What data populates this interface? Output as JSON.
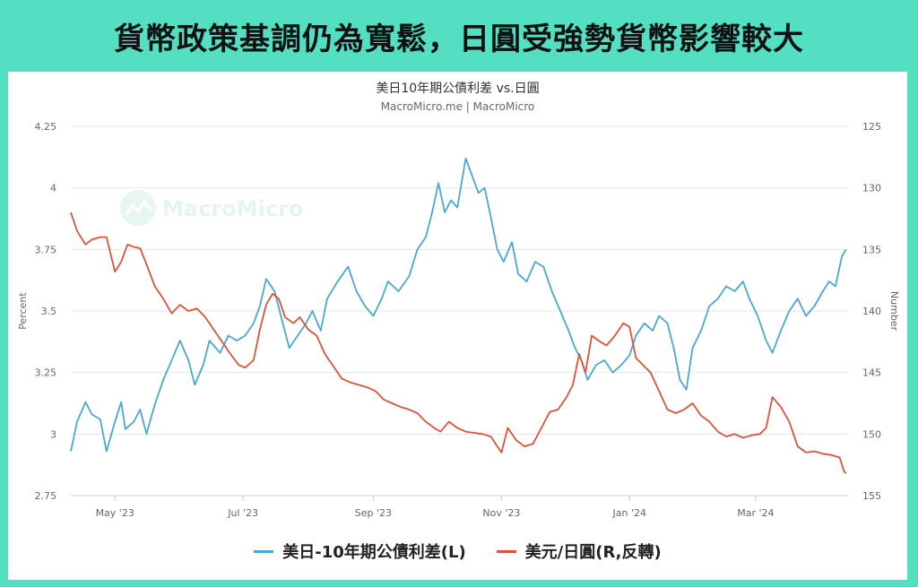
{
  "headline": "貨幣政策基調仍為寬鬆，日圓受強勢貨幣影響較大",
  "watermark": "MacroMicro",
  "colors": {
    "spread": "#4aa8d0",
    "jpy": "#d9553a",
    "frame": "#53e0c2",
    "grid": "#e6e6e6",
    "axis_text": "#666666"
  },
  "chart_data": {
    "type": "line",
    "title": "美日10年期公債利差 vs.日圓",
    "subtitle": "MacroMicro.me | MacroMicro",
    "xlabel": "",
    "x_range": [
      "2023-04-10",
      "2024-04-14"
    ],
    "x_ticks": [
      {
        "date": "2023-05-01",
        "label": "May '23"
      },
      {
        "date": "2023-07-01",
        "label": "Jul '23"
      },
      {
        "date": "2023-09-01",
        "label": "Sep '23"
      },
      {
        "date": "2023-11-01",
        "label": "Nov '23"
      },
      {
        "date": "2024-01-01",
        "label": "Jan '24"
      },
      {
        "date": "2024-03-01",
        "label": "Mar '24"
      }
    ],
    "y_left": {
      "label": "Percent",
      "min": 2.75,
      "max": 4.25,
      "ticks": [
        2.75,
        3,
        3.25,
        3.5,
        3.75,
        4,
        4.25
      ]
    },
    "y_right": {
      "label": "Number",
      "min": 125,
      "max": 155,
      "reversed": true,
      "ticks": [
        125,
        130,
        135,
        140,
        145,
        150,
        155
      ]
    },
    "grid": true,
    "legend_position": "bottom",
    "series": [
      {
        "name": "美日-10年期公債利差(L)",
        "axis": "left",
        "points": [
          [
            "2023-04-10",
            2.93
          ],
          [
            "2023-04-13",
            3.05
          ],
          [
            "2023-04-17",
            3.13
          ],
          [
            "2023-04-20",
            3.08
          ],
          [
            "2023-04-24",
            3.06
          ],
          [
            "2023-04-27",
            2.93
          ],
          [
            "2023-05-01",
            3.05
          ],
          [
            "2023-05-04",
            3.13
          ],
          [
            "2023-05-06",
            3.02
          ],
          [
            "2023-05-10",
            3.05
          ],
          [
            "2023-05-13",
            3.1
          ],
          [
            "2023-05-16",
            3.0
          ],
          [
            "2023-05-20",
            3.12
          ],
          [
            "2023-05-24",
            3.22
          ],
          [
            "2023-05-28",
            3.3
          ],
          [
            "2023-06-01",
            3.38
          ],
          [
            "2023-06-05",
            3.3
          ],
          [
            "2023-06-08",
            3.2
          ],
          [
            "2023-06-12",
            3.28
          ],
          [
            "2023-06-15",
            3.38
          ],
          [
            "2023-06-20",
            3.33
          ],
          [
            "2023-06-24",
            3.4
          ],
          [
            "2023-06-28",
            3.38
          ],
          [
            "2023-07-02",
            3.4
          ],
          [
            "2023-07-06",
            3.45
          ],
          [
            "2023-07-09",
            3.52
          ],
          [
            "2023-07-12",
            3.63
          ],
          [
            "2023-07-16",
            3.58
          ],
          [
            "2023-07-19",
            3.48
          ],
          [
            "2023-07-23",
            3.35
          ],
          [
            "2023-07-27",
            3.4
          ],
          [
            "2023-07-31",
            3.45
          ],
          [
            "2023-08-03",
            3.5
          ],
          [
            "2023-08-07",
            3.42
          ],
          [
            "2023-08-10",
            3.55
          ],
          [
            "2023-08-15",
            3.62
          ],
          [
            "2023-08-20",
            3.68
          ],
          [
            "2023-08-24",
            3.58
          ],
          [
            "2023-08-28",
            3.52
          ],
          [
            "2023-09-01",
            3.48
          ],
          [
            "2023-09-05",
            3.55
          ],
          [
            "2023-09-08",
            3.62
          ],
          [
            "2023-09-13",
            3.58
          ],
          [
            "2023-09-18",
            3.64
          ],
          [
            "2023-09-22",
            3.75
          ],
          [
            "2023-09-26",
            3.8
          ],
          [
            "2023-09-29",
            3.9
          ],
          [
            "2023-10-02",
            4.02
          ],
          [
            "2023-10-05",
            3.9
          ],
          [
            "2023-10-08",
            3.95
          ],
          [
            "2023-10-11",
            3.92
          ],
          [
            "2023-10-15",
            4.12
          ],
          [
            "2023-10-18",
            4.05
          ],
          [
            "2023-10-21",
            3.98
          ],
          [
            "2023-10-24",
            4.0
          ],
          [
            "2023-10-27",
            3.88
          ],
          [
            "2023-10-30",
            3.75
          ],
          [
            "2023-11-02",
            3.7
          ],
          [
            "2023-11-06",
            3.78
          ],
          [
            "2023-11-09",
            3.65
          ],
          [
            "2023-11-13",
            3.62
          ],
          [
            "2023-11-17",
            3.7
          ],
          [
            "2023-11-21",
            3.68
          ],
          [
            "2023-11-25",
            3.58
          ],
          [
            "2023-11-29",
            3.5
          ],
          [
            "2023-12-03",
            3.42
          ],
          [
            "2023-12-06",
            3.35
          ],
          [
            "2023-12-09",
            3.3
          ],
          [
            "2023-12-12",
            3.22
          ],
          [
            "2023-12-16",
            3.28
          ],
          [
            "2023-12-20",
            3.3
          ],
          [
            "2023-12-24",
            3.25
          ],
          [
            "2023-12-28",
            3.28
          ],
          [
            "2024-01-01",
            3.32
          ],
          [
            "2024-01-04",
            3.4
          ],
          [
            "2024-01-08",
            3.45
          ],
          [
            "2024-01-12",
            3.42
          ],
          [
            "2024-01-15",
            3.48
          ],
          [
            "2024-01-19",
            3.45
          ],
          [
            "2024-01-22",
            3.35
          ],
          [
            "2024-01-25",
            3.22
          ],
          [
            "2024-01-28",
            3.18
          ],
          [
            "2024-01-31",
            3.35
          ],
          [
            "2024-02-04",
            3.42
          ],
          [
            "2024-02-08",
            3.52
          ],
          [
            "2024-02-12",
            3.55
          ],
          [
            "2024-02-16",
            3.6
          ],
          [
            "2024-02-20",
            3.58
          ],
          [
            "2024-02-24",
            3.62
          ],
          [
            "2024-02-27",
            3.55
          ],
          [
            "2024-03-02",
            3.48
          ],
          [
            "2024-03-06",
            3.38
          ],
          [
            "2024-03-09",
            3.33
          ],
          [
            "2024-03-13",
            3.42
          ],
          [
            "2024-03-17",
            3.5
          ],
          [
            "2024-03-21",
            3.55
          ],
          [
            "2024-03-25",
            3.48
          ],
          [
            "2024-03-29",
            3.52
          ],
          [
            "2024-04-02",
            3.58
          ],
          [
            "2024-04-05",
            3.62
          ],
          [
            "2024-04-08",
            3.6
          ],
          [
            "2024-04-11",
            3.72
          ],
          [
            "2024-04-13",
            3.75
          ]
        ]
      },
      {
        "name": "美元/日圓(R,反轉)",
        "axis": "right",
        "points": [
          [
            "2023-04-10",
            132.0
          ],
          [
            "2023-04-13",
            133.5
          ],
          [
            "2023-04-17",
            134.6
          ],
          [
            "2023-04-20",
            134.2
          ],
          [
            "2023-04-24",
            134.0
          ],
          [
            "2023-04-27",
            134.0
          ],
          [
            "2023-05-01",
            136.8
          ],
          [
            "2023-05-04",
            136.0
          ],
          [
            "2023-05-07",
            134.6
          ],
          [
            "2023-05-10",
            134.8
          ],
          [
            "2023-05-13",
            134.9
          ],
          [
            "2023-05-16",
            136.2
          ],
          [
            "2023-05-20",
            138.0
          ],
          [
            "2023-05-24",
            139.0
          ],
          [
            "2023-05-28",
            140.2
          ],
          [
            "2023-06-01",
            139.5
          ],
          [
            "2023-06-05",
            140.0
          ],
          [
            "2023-06-09",
            139.8
          ],
          [
            "2023-06-13",
            140.5
          ],
          [
            "2023-06-17",
            141.5
          ],
          [
            "2023-06-21",
            142.5
          ],
          [
            "2023-06-25",
            143.5
          ],
          [
            "2023-06-29",
            144.4
          ],
          [
            "2023-07-02",
            144.6
          ],
          [
            "2023-07-06",
            144.0
          ],
          [
            "2023-07-09",
            141.5
          ],
          [
            "2023-07-12",
            139.5
          ],
          [
            "2023-07-15",
            138.6
          ],
          [
            "2023-07-18",
            139.0
          ],
          [
            "2023-07-21",
            140.5
          ],
          [
            "2023-07-25",
            141.0
          ],
          [
            "2023-07-28",
            140.5
          ],
          [
            "2023-08-01",
            141.5
          ],
          [
            "2023-08-05",
            142.0
          ],
          [
            "2023-08-09",
            143.5
          ],
          [
            "2023-08-13",
            144.5
          ],
          [
            "2023-08-17",
            145.5
          ],
          [
            "2023-08-21",
            145.8
          ],
          [
            "2023-08-25",
            146.0
          ],
          [
            "2023-08-29",
            146.2
          ],
          [
            "2023-09-02",
            146.5
          ],
          [
            "2023-09-06",
            147.2
          ],
          [
            "2023-09-10",
            147.5
          ],
          [
            "2023-09-14",
            147.8
          ],
          [
            "2023-09-18",
            148.0
          ],
          [
            "2023-09-22",
            148.3
          ],
          [
            "2023-09-26",
            149.0
          ],
          [
            "2023-09-30",
            149.5
          ],
          [
            "2023-10-03",
            149.8
          ],
          [
            "2023-10-07",
            149.0
          ],
          [
            "2023-10-11",
            149.5
          ],
          [
            "2023-10-15",
            149.8
          ],
          [
            "2023-10-19",
            149.9
          ],
          [
            "2023-10-23",
            150.0
          ],
          [
            "2023-10-27",
            150.2
          ],
          [
            "2023-10-30",
            151.0
          ],
          [
            "2023-11-01",
            151.5
          ],
          [
            "2023-11-04",
            149.5
          ],
          [
            "2023-11-08",
            150.5
          ],
          [
            "2023-11-12",
            151.0
          ],
          [
            "2023-11-16",
            150.8
          ],
          [
            "2023-11-20",
            149.5
          ],
          [
            "2023-11-24",
            148.2
          ],
          [
            "2023-11-28",
            148.0
          ],
          [
            "2023-12-02",
            147.0
          ],
          [
            "2023-12-05",
            146.0
          ],
          [
            "2023-12-08",
            143.5
          ],
          [
            "2023-12-11",
            145.0
          ],
          [
            "2023-12-14",
            142.0
          ],
          [
            "2023-12-18",
            142.5
          ],
          [
            "2023-12-21",
            142.8
          ],
          [
            "2023-12-25",
            142.0
          ],
          [
            "2023-12-29",
            141.0
          ],
          [
            "2024-01-01",
            141.3
          ],
          [
            "2024-01-04",
            143.8
          ],
          [
            "2024-01-08",
            144.5
          ],
          [
            "2024-01-11",
            145.0
          ],
          [
            "2024-01-15",
            146.5
          ],
          [
            "2024-01-19",
            148.0
          ],
          [
            "2024-01-23",
            148.3
          ],
          [
            "2024-01-27",
            148.0
          ],
          [
            "2024-01-31",
            147.5
          ],
          [
            "2024-02-04",
            148.5
          ],
          [
            "2024-02-08",
            149.0
          ],
          [
            "2024-02-12",
            149.8
          ],
          [
            "2024-02-16",
            150.2
          ],
          [
            "2024-02-20",
            150.0
          ],
          [
            "2024-02-24",
            150.3
          ],
          [
            "2024-02-28",
            150.1
          ],
          [
            "2024-03-03",
            150.0
          ],
          [
            "2024-03-06",
            149.5
          ],
          [
            "2024-03-09",
            147.0
          ],
          [
            "2024-03-13",
            147.8
          ],
          [
            "2024-03-17",
            149.0
          ],
          [
            "2024-03-21",
            151.0
          ],
          [
            "2024-03-25",
            151.5
          ],
          [
            "2024-03-29",
            151.4
          ],
          [
            "2024-04-02",
            151.6
          ],
          [
            "2024-04-06",
            151.7
          ],
          [
            "2024-04-10",
            151.9
          ],
          [
            "2024-04-12",
            153.0
          ],
          [
            "2024-04-13",
            153.2
          ]
        ]
      }
    ]
  }
}
